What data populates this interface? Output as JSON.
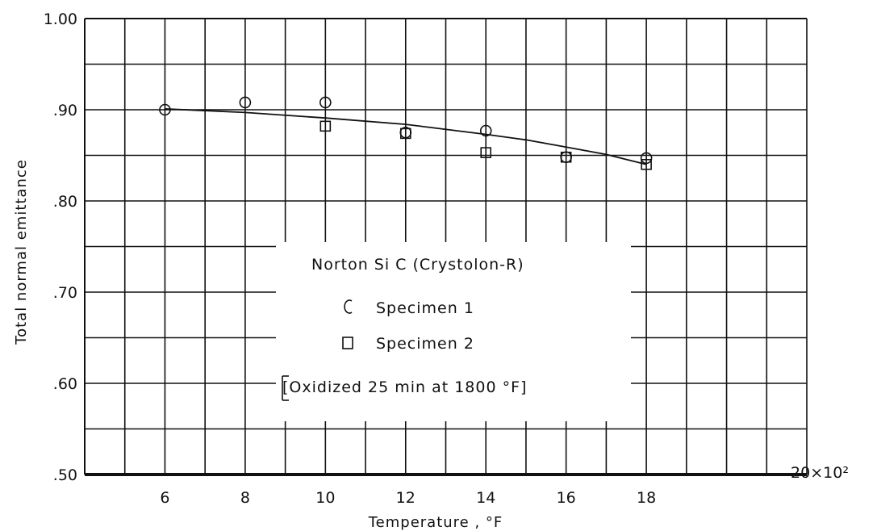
{
  "chart_data": {
    "type": "scatter",
    "title": "",
    "xlabel": "Temperature , °F",
    "ylabel": "Total normal emittance",
    "x_multiplier_label": "20×10²",
    "x_ticks": [
      6,
      8,
      10,
      12,
      14,
      16,
      18
    ],
    "x_tick_labels": [
      "6",
      "8",
      "10",
      "12",
      "14",
      "16",
      "18"
    ],
    "y_ticks": [
      0.5,
      0.6,
      0.7,
      0.8,
      0.9,
      1.0
    ],
    "y_tick_labels": [
      ".50",
      ".60",
      ".70",
      ".80",
      ".90",
      "1.00"
    ],
    "xlim": [
      4,
      22
    ],
    "ylim": [
      0.5,
      1.0
    ],
    "grid": true,
    "legend_placement": "center",
    "legend": {
      "title": "Norton Si C (Crystolon-R)",
      "note": "[Oxidized 25 min at 1800 °F]",
      "entries": [
        {
          "marker": "circle",
          "label": "Specimen  1"
        },
        {
          "marker": "square",
          "label": "Specimen  2"
        }
      ]
    },
    "series": [
      {
        "name": "Specimen 1",
        "marker": "circle",
        "x": [
          6,
          8,
          10,
          12,
          14,
          16,
          18
        ],
        "y": [
          0.9,
          0.908,
          0.908,
          0.875,
          0.877,
          0.848,
          0.847
        ]
      },
      {
        "name": "Specimen 2",
        "marker": "square",
        "x": [
          10,
          12,
          14,
          16,
          18
        ],
        "y": [
          0.882,
          0.874,
          0.853,
          0.848,
          0.84
        ]
      }
    ],
    "fit_curve": {
      "x": [
        6,
        8,
        10,
        12,
        14,
        15,
        16,
        17,
        18
      ],
      "y": [
        0.901,
        0.897,
        0.891,
        0.884,
        0.873,
        0.867,
        0.859,
        0.851,
        0.84
      ]
    }
  }
}
